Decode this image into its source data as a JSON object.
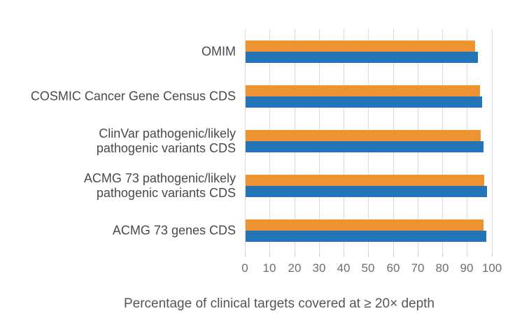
{
  "chart_data": {
    "type": "bar",
    "orientation": "horizontal",
    "title": "",
    "xlabel": "Percentage of clinical targets covered at ≥ 20× depth",
    "ylabel": "",
    "xlim": [
      0,
      100
    ],
    "xticks": [
      0,
      10,
      20,
      30,
      40,
      50,
      60,
      70,
      80,
      90,
      100
    ],
    "grid": true,
    "legend_position": "none",
    "categories": [
      "OMIM",
      "COSMIC Cancer Gene Census CDS",
      "ClinVar pathogenic/likely pathogenic variants CDS",
      "ACMG 73 pathogenic/likely pathogenic variants CDS",
      "ACMG 73 genes CDS"
    ],
    "category_label_lines": [
      [
        "OMIM"
      ],
      [
        "COSMIC Cancer Gene Census CDS"
      ],
      [
        "ClinVar pathogenic/likely",
        "pathogenic variants CDS"
      ],
      [
        "ACMG 73 pathogenic/likely",
        "pathogenic variants CDS"
      ],
      [
        "ACMG 73 genes CDS"
      ]
    ],
    "series": [
      {
        "name": "orange-series",
        "color": "#ED9331",
        "values": [
          93.0,
          94.9,
          95.4,
          96.6,
          96.4
        ]
      },
      {
        "name": "blue-series",
        "color": "#2475B8",
        "values": [
          94.2,
          95.7,
          96.4,
          97.9,
          97.4
        ]
      }
    ]
  },
  "style": {
    "background": "#FFFFFF",
    "gridline_color": "#DBDBDB",
    "tick_label_color": "#6E6E6E",
    "category_label_color": "#4A4A4A",
    "caption_color": "#555555"
  }
}
